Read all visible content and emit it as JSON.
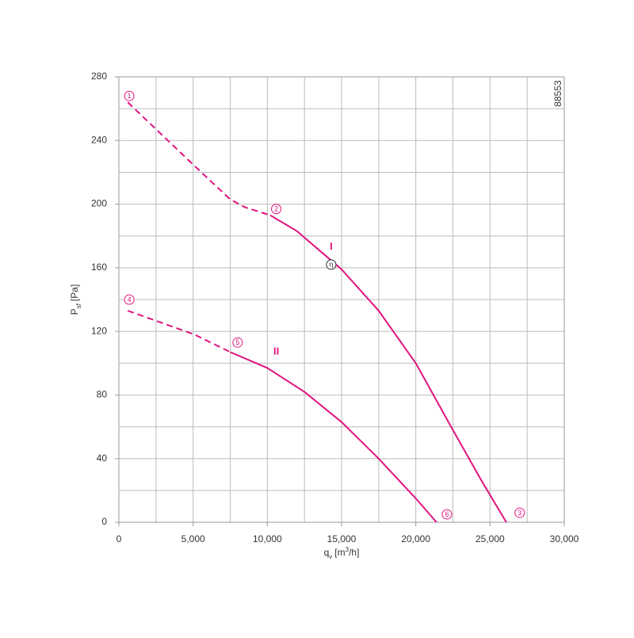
{
  "chart_data": {
    "type": "line",
    "code": "88553",
    "xlabel": {
      "main": "q",
      "sub": "v",
      "unit": "[m",
      "sup": "3",
      "unit_end": "/h]"
    },
    "ylabel": {
      "main": "P",
      "sub": "sf",
      "unit": "[Pa]"
    },
    "xlim": [
      0,
      30000
    ],
    "ylim": [
      0,
      280
    ],
    "xticks": [
      0,
      {
        "value": 5000,
        "label": "5,000"
      },
      {
        "value": 10000,
        "label": "10,000"
      },
      {
        "value": 15000,
        "label": "15,000"
      },
      {
        "value": 20000,
        "label": "20,000"
      },
      {
        "value": 25000,
        "label": "25,000"
      },
      {
        "value": 30000,
        "label": "30,000"
      }
    ],
    "yticks": [
      0,
      40,
      80,
      120,
      160,
      200,
      240,
      280
    ],
    "xgrid": [
      0,
      2500,
      5000,
      7500,
      10000,
      12500,
      15000,
      17500,
      20000,
      22500,
      25000,
      27500,
      30000
    ],
    "ygrid": [
      0,
      20,
      40,
      60,
      80,
      100,
      120,
      140,
      160,
      180,
      200,
      220,
      240,
      260,
      280
    ],
    "grid": true,
    "series": [
      {
        "name": "I",
        "color": "#e0147f",
        "style": "solid",
        "x": [
          10200,
          12000,
          14000,
          15000,
          17500,
          20000,
          22500,
          24500,
          26100
        ],
        "values": [
          193,
          183,
          167,
          159,
          133,
          100,
          58,
          25,
          0
        ]
      },
      {
        "color": "#e0147f",
        "style": "dashed",
        "x": [
          600,
          5100,
          7500,
          8500,
          10200
        ],
        "values": [
          264,
          224,
          203,
          198,
          193
        ]
      },
      {
        "name": "II",
        "color": "#e0147f",
        "style": "solid",
        "x": [
          7500,
          10000,
          12500,
          15000,
          17500,
          20000,
          21400
        ],
        "values": [
          107,
          97,
          82,
          63,
          40,
          15,
          0
        ]
      },
      {
        "color": "#e0147f",
        "style": "dashed",
        "x": [
          600,
          5100,
          7500
        ],
        "values": [
          133,
          118,
          107
        ]
      }
    ],
    "series_labels": [
      {
        "text": "I",
        "x": 14300,
        "y": 173
      },
      {
        "text": "II",
        "x": 10600,
        "y": 107
      }
    ],
    "annotations": [
      {
        "text": "1",
        "x": 700,
        "y": 268
      },
      {
        "text": "2",
        "x": 10600,
        "y": 197
      },
      {
        "text": "3",
        "x": 27000,
        "y": 6
      },
      {
        "text": "4",
        "x": 700,
        "y": 140
      },
      {
        "text": "5",
        "x": 8000,
        "y": 113
      },
      {
        "text": "6",
        "x": 22100,
        "y": 5
      },
      {
        "text": "η",
        "x": 14300,
        "y": 162,
        "color": "#333333"
      }
    ]
  }
}
